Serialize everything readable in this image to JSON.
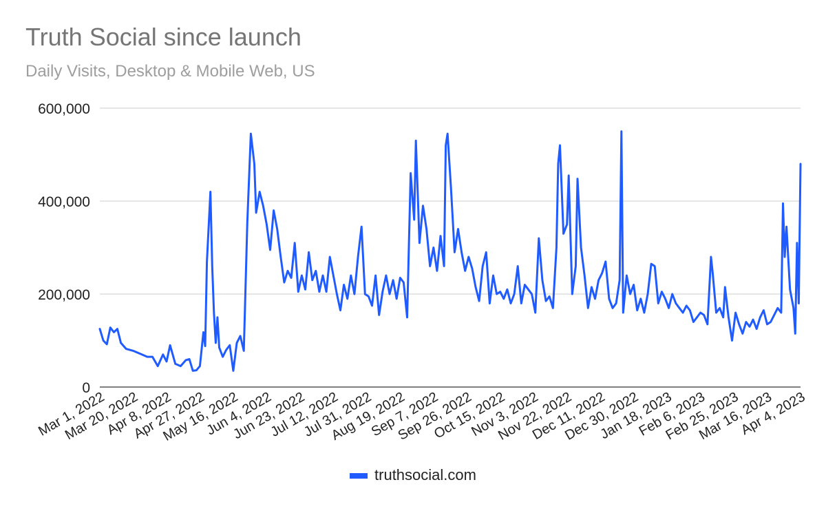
{
  "chart_data": {
    "type": "line",
    "title": "Truth Social since launch",
    "subtitle": "Daily Visits, Desktop & Mobile Web, US",
    "xlabel": "",
    "ylabel": "",
    "ylim": [
      0,
      600000
    ],
    "y_ticks": [
      "0",
      "200,000",
      "400,000",
      "600,000"
    ],
    "x_ticks": [
      "Mar 1, 2022",
      "Mar 20, 2022",
      "Apr 8, 2022",
      "Apr 27, 2022",
      "May 16, 2022",
      "Jun 4, 2022",
      "Jun 23, 2022",
      "Jul 12, 2022",
      "Jul 31, 2022",
      "Aug 19, 2022",
      "Sep 7, 2022",
      "Sep 26, 2022",
      "Oct 15, 2022",
      "Nov 3, 2022",
      "Nov 22, 2022",
      "Dec 11, 2022",
      "Dec 30, 2022",
      "Jan 18, 2023",
      "Feb 6, 2023",
      "Feb 25, 2023",
      "Mar 16, 2023",
      "Apr 4, 2023"
    ],
    "grid": true,
    "legend_position": "bottom",
    "series": [
      {
        "name": "truthsocial.com",
        "color": "#1f5bff",
        "x_start": "2022-03-01",
        "x_end": "2023-04-04",
        "keypoints": [
          [
            "2022-03-01",
            125000
          ],
          [
            "2022-03-03",
            100000
          ],
          [
            "2022-03-05",
            92000
          ],
          [
            "2022-03-07",
            128000
          ],
          [
            "2022-03-09",
            118000
          ],
          [
            "2022-03-11",
            125000
          ],
          [
            "2022-03-13",
            95000
          ],
          [
            "2022-03-16",
            82000
          ],
          [
            "2022-03-20",
            78000
          ],
          [
            "2022-03-25",
            70000
          ],
          [
            "2022-03-28",
            65000
          ],
          [
            "2022-03-31",
            65000
          ],
          [
            "2022-04-03",
            45000
          ],
          [
            "2022-04-06",
            70000
          ],
          [
            "2022-04-08",
            55000
          ],
          [
            "2022-04-10",
            90000
          ],
          [
            "2022-04-13",
            50000
          ],
          [
            "2022-04-16",
            45000
          ],
          [
            "2022-04-19",
            58000
          ],
          [
            "2022-04-21",
            60000
          ],
          [
            "2022-04-23",
            35000
          ],
          [
            "2022-04-25",
            36000
          ],
          [
            "2022-04-27",
            45000
          ],
          [
            "2022-04-29",
            118000
          ],
          [
            "2022-04-30",
            88000
          ],
          [
            "2022-05-01",
            270000
          ],
          [
            "2022-05-03",
            420000
          ],
          [
            "2022-05-04",
            260000
          ],
          [
            "2022-05-05",
            160000
          ],
          [
            "2022-05-06",
            95000
          ],
          [
            "2022-05-07",
            150000
          ],
          [
            "2022-05-08",
            85000
          ],
          [
            "2022-05-10",
            65000
          ],
          [
            "2022-05-12",
            80000
          ],
          [
            "2022-05-14",
            90000
          ],
          [
            "2022-05-16",
            35000
          ],
          [
            "2022-05-18",
            95000
          ],
          [
            "2022-05-20",
            110000
          ],
          [
            "2022-05-22",
            78000
          ],
          [
            "2022-05-24",
            355000
          ],
          [
            "2022-05-26",
            545000
          ],
          [
            "2022-05-28",
            480000
          ],
          [
            "2022-05-29",
            375000
          ],
          [
            "2022-05-31",
            420000
          ],
          [
            "2022-06-02",
            390000
          ],
          [
            "2022-06-04",
            350000
          ],
          [
            "2022-06-06",
            295000
          ],
          [
            "2022-06-08",
            380000
          ],
          [
            "2022-06-10",
            340000
          ],
          [
            "2022-06-12",
            280000
          ],
          [
            "2022-06-14",
            225000
          ],
          [
            "2022-06-16",
            250000
          ],
          [
            "2022-06-18",
            235000
          ],
          [
            "2022-06-20",
            310000
          ],
          [
            "2022-06-22",
            205000
          ],
          [
            "2022-06-24",
            240000
          ],
          [
            "2022-06-26",
            210000
          ],
          [
            "2022-06-28",
            290000
          ],
          [
            "2022-06-30",
            230000
          ],
          [
            "2022-07-02",
            250000
          ],
          [
            "2022-07-04",
            205000
          ],
          [
            "2022-07-06",
            240000
          ],
          [
            "2022-07-08",
            205000
          ],
          [
            "2022-07-10",
            280000
          ],
          [
            "2022-07-12",
            240000
          ],
          [
            "2022-07-14",
            200000
          ],
          [
            "2022-07-16",
            165000
          ],
          [
            "2022-07-18",
            220000
          ],
          [
            "2022-07-20",
            190000
          ],
          [
            "2022-07-22",
            240000
          ],
          [
            "2022-07-24",
            200000
          ],
          [
            "2022-07-26",
            280000
          ],
          [
            "2022-07-28",
            345000
          ],
          [
            "2022-07-30",
            200000
          ],
          [
            "2022-08-01",
            195000
          ],
          [
            "2022-08-03",
            175000
          ],
          [
            "2022-08-05",
            240000
          ],
          [
            "2022-08-07",
            155000
          ],
          [
            "2022-08-09",
            205000
          ],
          [
            "2022-08-11",
            240000
          ],
          [
            "2022-08-13",
            200000
          ],
          [
            "2022-08-15",
            230000
          ],
          [
            "2022-08-17",
            190000
          ],
          [
            "2022-08-19",
            235000
          ],
          [
            "2022-08-21",
            225000
          ],
          [
            "2022-08-23",
            150000
          ],
          [
            "2022-08-25",
            460000
          ],
          [
            "2022-08-27",
            360000
          ],
          [
            "2022-08-28",
            530000
          ],
          [
            "2022-08-30",
            310000
          ],
          [
            "2022-09-01",
            390000
          ],
          [
            "2022-09-03",
            340000
          ],
          [
            "2022-09-05",
            260000
          ],
          [
            "2022-09-07",
            300000
          ],
          [
            "2022-09-09",
            250000
          ],
          [
            "2022-09-11",
            325000
          ],
          [
            "2022-09-13",
            260000
          ],
          [
            "2022-09-14",
            520000
          ],
          [
            "2022-09-15",
            545000
          ],
          [
            "2022-09-17",
            425000
          ],
          [
            "2022-09-19",
            290000
          ],
          [
            "2022-09-21",
            340000
          ],
          [
            "2022-09-23",
            290000
          ],
          [
            "2022-09-25",
            250000
          ],
          [
            "2022-09-27",
            280000
          ],
          [
            "2022-09-29",
            255000
          ],
          [
            "2022-10-01",
            215000
          ],
          [
            "2022-10-03",
            185000
          ],
          [
            "2022-10-05",
            260000
          ],
          [
            "2022-10-07",
            290000
          ],
          [
            "2022-10-09",
            180000
          ],
          [
            "2022-10-11",
            240000
          ],
          [
            "2022-10-13",
            200000
          ],
          [
            "2022-10-15",
            205000
          ],
          [
            "2022-10-17",
            190000
          ],
          [
            "2022-10-19",
            210000
          ],
          [
            "2022-10-21",
            180000
          ],
          [
            "2022-10-23",
            200000
          ],
          [
            "2022-10-25",
            260000
          ],
          [
            "2022-10-27",
            180000
          ],
          [
            "2022-10-29",
            220000
          ],
          [
            "2022-10-31",
            210000
          ],
          [
            "2022-11-02",
            200000
          ],
          [
            "2022-11-04",
            160000
          ],
          [
            "2022-11-06",
            320000
          ],
          [
            "2022-11-08",
            230000
          ],
          [
            "2022-11-10",
            185000
          ],
          [
            "2022-11-12",
            195000
          ],
          [
            "2022-11-14",
            170000
          ],
          [
            "2022-11-16",
            300000
          ],
          [
            "2022-11-17",
            480000
          ],
          [
            "2022-11-18",
            520000
          ],
          [
            "2022-11-20",
            330000
          ],
          [
            "2022-11-22",
            350000
          ],
          [
            "2022-11-23",
            455000
          ],
          [
            "2022-11-25",
            200000
          ],
          [
            "2022-11-27",
            260000
          ],
          [
            "2022-11-28",
            448000
          ],
          [
            "2022-11-30",
            300000
          ],
          [
            "2022-12-02",
            240000
          ],
          [
            "2022-12-04",
            170000
          ],
          [
            "2022-12-06",
            215000
          ],
          [
            "2022-12-08",
            190000
          ],
          [
            "2022-12-10",
            230000
          ],
          [
            "2022-12-12",
            245000
          ],
          [
            "2022-12-14",
            270000
          ],
          [
            "2022-12-16",
            190000
          ],
          [
            "2022-12-18",
            170000
          ],
          [
            "2022-12-20",
            180000
          ],
          [
            "2022-12-22",
            230000
          ],
          [
            "2022-12-23",
            550000
          ],
          [
            "2022-12-24",
            160000
          ],
          [
            "2022-12-26",
            240000
          ],
          [
            "2022-12-28",
            200000
          ],
          [
            "2022-12-30",
            220000
          ],
          [
            "2023-01-01",
            165000
          ],
          [
            "2023-01-03",
            190000
          ],
          [
            "2023-01-05",
            160000
          ],
          [
            "2023-01-07",
            200000
          ],
          [
            "2023-01-09",
            265000
          ],
          [
            "2023-01-11",
            260000
          ],
          [
            "2023-01-13",
            180000
          ],
          [
            "2023-01-15",
            205000
          ],
          [
            "2023-01-17",
            190000
          ],
          [
            "2023-01-19",
            170000
          ],
          [
            "2023-01-21",
            200000
          ],
          [
            "2023-01-23",
            180000
          ],
          [
            "2023-01-25",
            170000
          ],
          [
            "2023-01-27",
            160000
          ],
          [
            "2023-01-29",
            175000
          ],
          [
            "2023-01-31",
            165000
          ],
          [
            "2023-02-02",
            140000
          ],
          [
            "2023-02-04",
            150000
          ],
          [
            "2023-02-06",
            160000
          ],
          [
            "2023-02-08",
            155000
          ],
          [
            "2023-02-10",
            135000
          ],
          [
            "2023-02-12",
            280000
          ],
          [
            "2023-02-13",
            245000
          ],
          [
            "2023-02-15",
            160000
          ],
          [
            "2023-02-17",
            170000
          ],
          [
            "2023-02-19",
            150000
          ],
          [
            "2023-02-20",
            215000
          ],
          [
            "2023-02-22",
            150000
          ],
          [
            "2023-02-24",
            100000
          ],
          [
            "2023-02-26",
            160000
          ],
          [
            "2023-02-28",
            135000
          ],
          [
            "2023-03-02",
            115000
          ],
          [
            "2023-03-04",
            140000
          ],
          [
            "2023-03-06",
            130000
          ],
          [
            "2023-03-08",
            145000
          ],
          [
            "2023-03-10",
            125000
          ],
          [
            "2023-03-12",
            150000
          ],
          [
            "2023-03-14",
            165000
          ],
          [
            "2023-03-16",
            135000
          ],
          [
            "2023-03-18",
            140000
          ],
          [
            "2023-03-20",
            155000
          ],
          [
            "2023-03-22",
            170000
          ],
          [
            "2023-03-24",
            160000
          ],
          [
            "2023-03-25",
            395000
          ],
          [
            "2023-03-26",
            280000
          ],
          [
            "2023-03-27",
            345000
          ],
          [
            "2023-03-29",
            210000
          ],
          [
            "2023-03-31",
            170000
          ],
          [
            "2023-04-01",
            115000
          ],
          [
            "2023-04-02",
            310000
          ],
          [
            "2023-04-03",
            180000
          ],
          [
            "2023-04-04",
            480000
          ]
        ]
      }
    ]
  }
}
